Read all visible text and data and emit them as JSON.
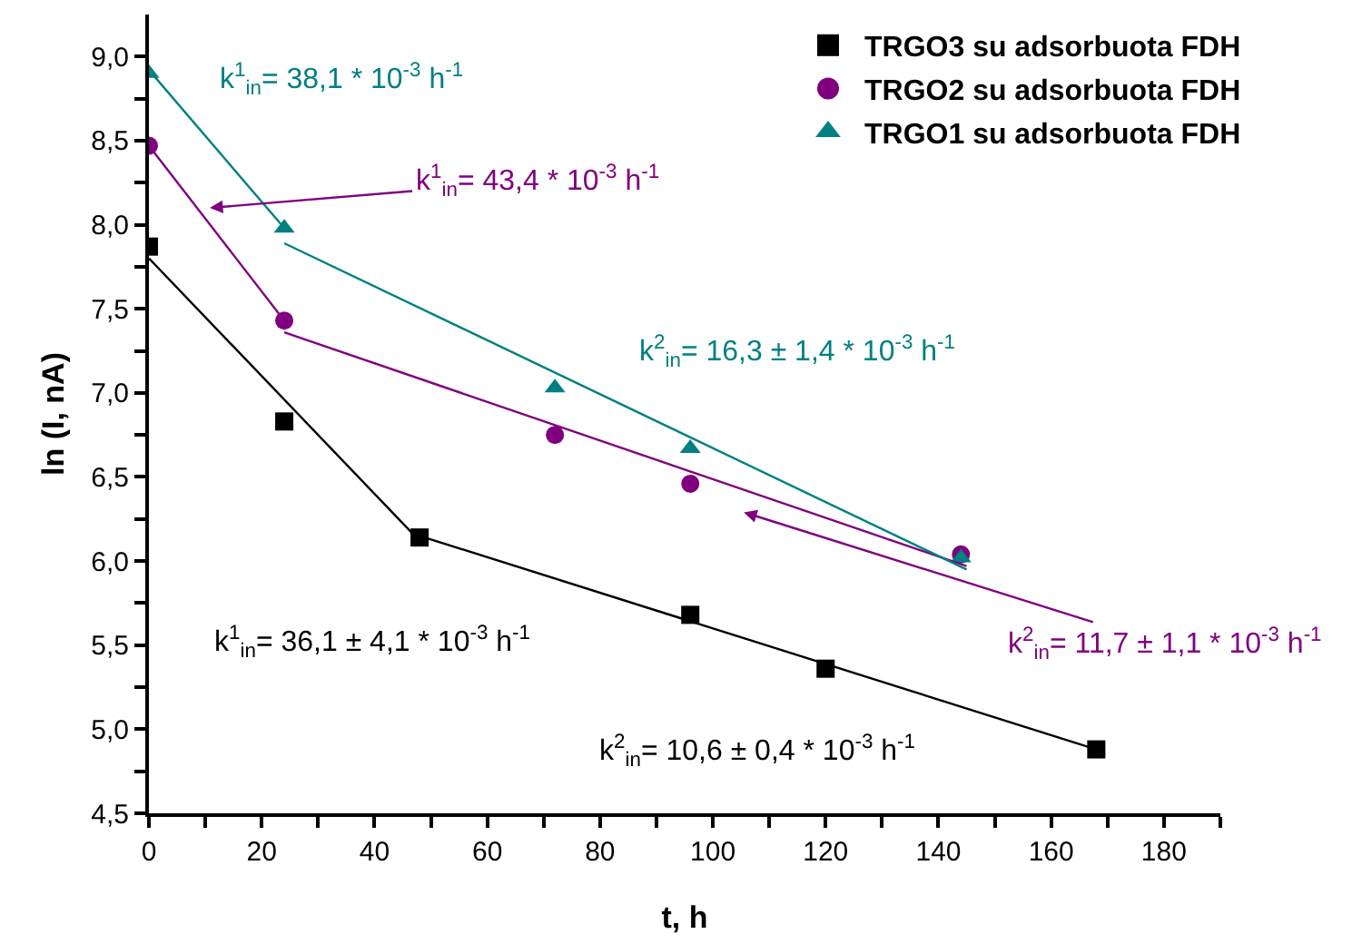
{
  "chart_data": {
    "type": "scatter",
    "xlabel": "t, h",
    "ylabel": "ln (I, nA)",
    "xlim": [
      0,
      190
    ],
    "ylim": [
      4.5,
      9.25
    ],
    "xticks": [
      0,
      {
        "value": 10,
        "label": null
      },
      20,
      {
        "value": 30,
        "label": null
      },
      40,
      {
        "value": 50,
        "label": null
      },
      60,
      {
        "value": 70,
        "label": null
      },
      80,
      {
        "value": 90,
        "label": null
      },
      100,
      {
        "value": 110,
        "label": null
      },
      120,
      {
        "value": 130,
        "label": null
      },
      140,
      {
        "value": 150,
        "label": null
      },
      160,
      {
        "value": 170,
        "label": null
      },
      180,
      {
        "value": 190,
        "label": null
      }
    ],
    "yticks": [
      {
        "value": 4.5,
        "label": "4,5"
      },
      {
        "value": 4.75,
        "label": null
      },
      {
        "value": 5.0,
        "label": "5,0"
      },
      {
        "value": 5.25,
        "label": null
      },
      {
        "value": 5.5,
        "label": "5,5"
      },
      {
        "value": 5.75,
        "label": null
      },
      {
        "value": 6.0,
        "label": "6,0"
      },
      {
        "value": 6.25,
        "label": null
      },
      {
        "value": 6.5,
        "label": "6,5"
      },
      {
        "value": 6.75,
        "label": null
      },
      {
        "value": 7.0,
        "label": "7,0"
      },
      {
        "value": 7.25,
        "label": null
      },
      {
        "value": 7.5,
        "label": "7,5"
      },
      {
        "value": 7.75,
        "label": null
      },
      {
        "value": 8.0,
        "label": "8,0"
      },
      {
        "value": 8.25,
        "label": null
      },
      {
        "value": 8.5,
        "label": "8,5"
      },
      {
        "value": 8.75,
        "label": null
      },
      {
        "value": 9.0,
        "label": "9,0"
      }
    ],
    "legend": "top right",
    "series": [
      {
        "name": "TRGO3 su adsorbuota FDH",
        "color": "#000000",
        "marker": "square",
        "x": [
          0,
          24,
          48,
          96,
          120,
          168
        ],
        "values": [
          7.87,
          6.83,
          6.14,
          5.68,
          5.36,
          4.88
        ]
      },
      {
        "name": "TRGO2 su adsorbuota FDH",
        "color": "#800080",
        "marker": "circle",
        "x": [
          0,
          24,
          72,
          96,
          144
        ],
        "values": [
          8.47,
          7.43,
          6.75,
          6.46,
          6.04
        ]
      },
      {
        "name": "TRGO1 su adsorbuota FDH",
        "color": "#008080",
        "marker": "triangle",
        "x": [
          0,
          24,
          72,
          96,
          144
        ],
        "values": [
          8.9,
          7.98,
          7.03,
          6.67,
          6.02
        ]
      },
      {
        "type": "line",
        "color": "#000000",
        "x": [
          0,
          48
        ],
        "values": [
          7.8,
          6.12
        ]
      },
      {
        "type": "line",
        "color": "#000000",
        "x": [
          48,
          168
        ],
        "values": [
          6.15,
          4.88
        ]
      },
      {
        "type": "line",
        "color": "#800080",
        "x": [
          0,
          24
        ],
        "values": [
          8.47,
          7.43
        ]
      },
      {
        "type": "line",
        "color": "#800080",
        "x": [
          24,
          145
        ],
        "values": [
          7.36,
          5.97
        ]
      },
      {
        "type": "line",
        "color": "#008080",
        "x": [
          0,
          24
        ],
        "values": [
          8.92,
          7.98
        ]
      },
      {
        "type": "line",
        "color": "#008080",
        "x": [
          24,
          145
        ],
        "values": [
          7.89,
          5.95
        ]
      }
    ],
    "annotations": [
      "k$^{1}$$_{in}$= 38,1 * 10$^{-3}$ h$^{-1}$",
      "k$^{1}$$_{in}$= 43,4 * 10$^{-3}$ h$^{-1}$",
      "k$^{2}$$_{in}$= 16,3 ± 1,4 * 10$^{-3}$ h$^{-1}$",
      "k$^{2}$$_{in}$= 11,7 ± 1,1 * 10$^{-3}$ h$^{-1}$",
      "k$^{1}$$_{in}$= 36,1 ± 4,1 * 10$^{-3}$ h$^{-1}$",
      "k$^{2}$$_{in}$= 10,6 ± 0,4 * 10$^{-3}$ h$^{-1}$"
    ]
  }
}
